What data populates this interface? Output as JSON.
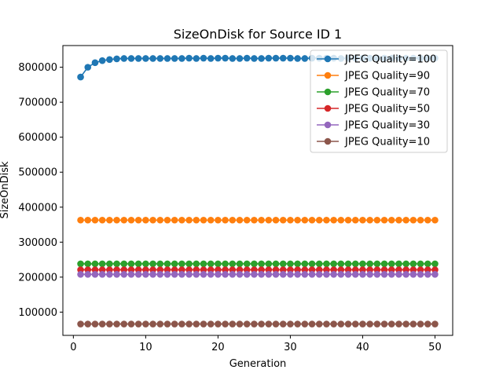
{
  "chart_data": {
    "type": "line",
    "title": "SizeOnDisk for Source ID 1",
    "xlabel": "Generation",
    "ylabel": "SizeOnDisk",
    "xlim": [
      -1.45,
      52.45
    ],
    "ylim": [
      33500,
      862000
    ],
    "xticks": [
      0,
      10,
      20,
      30,
      40,
      50
    ],
    "yticks": [
      100000,
      200000,
      300000,
      400000,
      500000,
      600000,
      700000,
      800000
    ],
    "grid": false,
    "legend_position": "top-right",
    "x": [
      1,
      2,
      3,
      4,
      5,
      6,
      7,
      8,
      9,
      10,
      11,
      12,
      13,
      14,
      15,
      16,
      17,
      18,
      19,
      20,
      21,
      22,
      23,
      24,
      25,
      26,
      27,
      28,
      29,
      30,
      31,
      32,
      33,
      34,
      35,
      36,
      37,
      38,
      39,
      40,
      41,
      42,
      43,
      44,
      45,
      46,
      47,
      48,
      49,
      50
    ],
    "series": [
      {
        "name": "JPEG Quality=100",
        "color": "#1f77b4",
        "values": [
          772000,
          800000,
          813000,
          819000,
          822000,
          824000,
          825000,
          825000,
          825000,
          825000,
          825000,
          825000,
          825000,
          825000,
          825000,
          826000,
          825000,
          826000,
          825000,
          826000,
          826000,
          825000,
          825000,
          826000,
          825000,
          825000,
          826000,
          826000,
          826000,
          826000,
          825000,
          825000,
          826000,
          826000,
          826000,
          826000,
          825000,
          826000,
          826000,
          826000,
          826000,
          826000,
          826000,
          826000,
          826000,
          826000,
          826000,
          826000,
          826000,
          826000
        ]
      },
      {
        "name": "JPEG Quality=90",
        "color": "#ff7f0e",
        "values": [
          363000,
          363000,
          363000,
          363000,
          363000,
          363000,
          363000,
          363000,
          363000,
          363000,
          363000,
          363000,
          363000,
          363000,
          363000,
          363000,
          363000,
          363000,
          363000,
          363000,
          363000,
          363000,
          363000,
          363000,
          363000,
          363000,
          363000,
          363000,
          363000,
          363000,
          363000,
          363000,
          363000,
          363000,
          363000,
          363000,
          363000,
          363000,
          363000,
          363000,
          363000,
          363000,
          363000,
          363000,
          363000,
          363000,
          363000,
          363000,
          363000,
          363000
        ]
      },
      {
        "name": "JPEG Quality=70",
        "color": "#2ca02c",
        "values": [
          238000,
          238000,
          238000,
          238000,
          238000,
          238000,
          238000,
          238000,
          238000,
          238000,
          238000,
          238000,
          238000,
          238000,
          238000,
          238000,
          238000,
          238000,
          238000,
          238000,
          238000,
          238000,
          238000,
          238000,
          238000,
          238000,
          238000,
          238000,
          238000,
          238000,
          238000,
          238000,
          238000,
          238000,
          238000,
          238000,
          238000,
          238000,
          238000,
          238000,
          238000,
          238000,
          238000,
          238000,
          238000,
          238000,
          238000,
          238000,
          238000,
          238000
        ]
      },
      {
        "name": "JPEG Quality=50",
        "color": "#d62728",
        "values": [
          221000,
          221000,
          221000,
          221000,
          221000,
          221000,
          221000,
          221000,
          221000,
          221000,
          221000,
          221000,
          221000,
          221000,
          221000,
          221000,
          221000,
          221000,
          221000,
          221000,
          221000,
          221000,
          221000,
          221000,
          221000,
          221000,
          221000,
          221000,
          221000,
          221000,
          221000,
          221000,
          221000,
          221000,
          221000,
          221000,
          221000,
          221000,
          221000,
          221000,
          221000,
          221000,
          221000,
          221000,
          221000,
          221000,
          221000,
          221000,
          221000,
          221000
        ]
      },
      {
        "name": "JPEG Quality=30",
        "color": "#9467bd",
        "values": [
          208000,
          208000,
          208000,
          208000,
          208000,
          208000,
          208000,
          208000,
          208000,
          208000,
          208000,
          208000,
          208000,
          208000,
          208000,
          208000,
          208000,
          208000,
          208000,
          208000,
          208000,
          208000,
          208000,
          208000,
          208000,
          208000,
          208000,
          208000,
          208000,
          208000,
          208000,
          208000,
          208000,
          208000,
          208000,
          208000,
          208000,
          208000,
          208000,
          208000,
          208000,
          208000,
          208000,
          208000,
          208000,
          208000,
          208000,
          208000,
          208000,
          208000
        ]
      },
      {
        "name": "JPEG Quality=10",
        "color": "#8c564b",
        "values": [
          66000,
          66000,
          66000,
          66000,
          66000,
          66000,
          66000,
          66000,
          66000,
          66000,
          66000,
          66000,
          66000,
          66000,
          66000,
          66000,
          66000,
          66000,
          66000,
          66000,
          66000,
          66000,
          66000,
          66000,
          66000,
          66000,
          66000,
          66000,
          66000,
          66000,
          66000,
          66000,
          66000,
          66000,
          66000,
          66000,
          66000,
          66000,
          66000,
          66000,
          66000,
          66000,
          66000,
          66000,
          66000,
          66000,
          66000,
          66000,
          66000,
          66000
        ]
      }
    ]
  }
}
